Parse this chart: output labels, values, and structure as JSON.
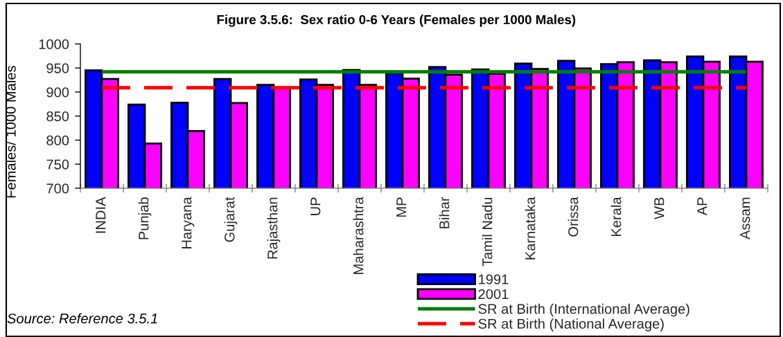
{
  "chart_data": {
    "type": "bar",
    "title": "Figure 3.5.6:  Sex ratio 0-6 Years (Females per 1000 Males)",
    "ylabel": "Females/ 1000 Males",
    "categories": [
      "INDIA",
      "Punjab",
      "Haryana",
      "Gujarat",
      "Rajasthan",
      "UP",
      "Maharashtra",
      "MP",
      "Bihar",
      "Tamil Nadu",
      "Karnataka",
      "Orissa",
      "Kerala",
      "WB",
      "AP",
      "Assam"
    ],
    "series": [
      {
        "name": "1991",
        "color": "#0000ff",
        "values": [
          945,
          874,
          878,
          927,
          915,
          926,
          946,
          939,
          952,
          947,
          959,
          965,
          958,
          966,
          974,
          974
        ]
      },
      {
        "name": "2001",
        "color": "#ff00ff",
        "values": [
          927,
          793,
          819,
          877,
          909,
          915,
          915,
          928,
          936,
          938,
          948,
          949,
          962,
          962,
          963,
          963
        ]
      },
      {
        "name": "SR at Birth (International Average)",
        "type": "line",
        "color": "#008000",
        "line_style": "solid",
        "values": [
          942,
          942,
          942,
          942,
          942,
          942,
          942,
          942,
          942,
          942,
          942,
          942,
          942,
          942,
          942,
          942
        ]
      },
      {
        "name": "SR at Birth (National Average)",
        "type": "line",
        "color": "#ff0000",
        "line_style": "dashed",
        "values": [
          909,
          909,
          909,
          909,
          909,
          909,
          909,
          909,
          909,
          909,
          909,
          909,
          909,
          909,
          909,
          909
        ]
      }
    ],
    "ylim": [
      700,
      1000
    ],
    "yticks": [
      700,
      750,
      800,
      850,
      900,
      950,
      1000
    ],
    "grid": false,
    "legend": "bottom",
    "annotations": [
      "Source: Reference 3.5.1"
    ]
  }
}
